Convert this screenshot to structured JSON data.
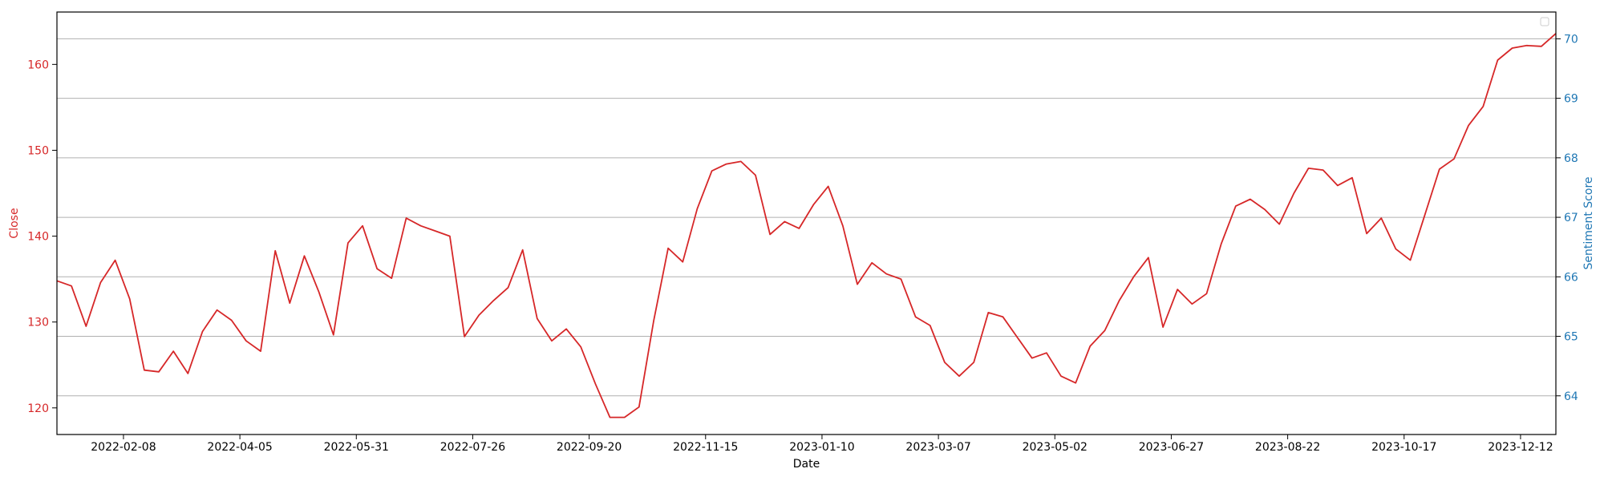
{
  "colors": {
    "close": "#d62728",
    "sentiment": "#1f77b4",
    "grid": "#b0b0b0",
    "frame": "#000000"
  },
  "chart_data": {
    "type": "line",
    "xlabel": "Date",
    "ylabel_left": "Close",
    "ylabel_right": "Sentiment Score",
    "x_range": [
      "2022-01-07",
      "2023-12-29"
    ],
    "x_ticks": [
      "2022-02-08",
      "2022-04-05",
      "2022-05-31",
      "2022-07-26",
      "2022-09-20",
      "2022-11-15",
      "2023-01-10",
      "2023-03-07",
      "2023-05-02",
      "2023-06-27",
      "2023-08-22",
      "2023-10-17",
      "2023-12-12"
    ],
    "y_left_range": [
      116.9,
      166.1
    ],
    "y_left_ticks": [
      120,
      130,
      140,
      150,
      160
    ],
    "y_right_range": [
      63.35,
      70.45
    ],
    "y_right_ticks": [
      64,
      65,
      66,
      67,
      68,
      69,
      70
    ],
    "grid": "horizontal lines at right-axis ticks",
    "legend": "empty, upper right",
    "series": [
      {
        "name": "Close",
        "axis": "left",
        "x": [
          "2022-01-07",
          "2022-01-14",
          "2022-01-21",
          "2022-01-28",
          "2022-02-04",
          "2022-02-11",
          "2022-02-18",
          "2022-02-25",
          "2022-03-04",
          "2022-03-11",
          "2022-03-18",
          "2022-03-25",
          "2022-04-01",
          "2022-04-08",
          "2022-04-15",
          "2022-04-22",
          "2022-04-29",
          "2022-05-06",
          "2022-05-13",
          "2022-05-20",
          "2022-05-27",
          "2022-06-03",
          "2022-06-10",
          "2022-06-17",
          "2022-06-24",
          "2022-07-01",
          "2022-07-08",
          "2022-07-15",
          "2022-07-22",
          "2022-07-29",
          "2022-08-05",
          "2022-08-12",
          "2022-08-19",
          "2022-08-26",
          "2022-09-02",
          "2022-09-09",
          "2022-09-16",
          "2022-09-23",
          "2022-09-30",
          "2022-10-07",
          "2022-10-14",
          "2022-10-21",
          "2022-10-28",
          "2022-11-04",
          "2022-11-11",
          "2022-11-18",
          "2022-11-25",
          "2022-12-02",
          "2022-12-09",
          "2022-12-16",
          "2022-12-23",
          "2022-12-30",
          "2023-01-06",
          "2023-01-13",
          "2023-01-20",
          "2023-01-27",
          "2023-02-03",
          "2023-02-10",
          "2023-02-17",
          "2023-02-24",
          "2023-03-03",
          "2023-03-10",
          "2023-03-17",
          "2023-03-24",
          "2023-03-31",
          "2023-04-07",
          "2023-04-14",
          "2023-04-21",
          "2023-04-28",
          "2023-05-05",
          "2023-05-12",
          "2023-05-19",
          "2023-05-26",
          "2023-06-02",
          "2023-06-09",
          "2023-06-16",
          "2023-06-23",
          "2023-06-30",
          "2023-07-07",
          "2023-07-14",
          "2023-07-21",
          "2023-07-28",
          "2023-08-04",
          "2023-08-11",
          "2023-08-18",
          "2023-08-25",
          "2023-09-01",
          "2023-09-08",
          "2023-09-15",
          "2023-09-22",
          "2023-09-29",
          "2023-10-06",
          "2023-10-13",
          "2023-10-20",
          "2023-10-27",
          "2023-11-03",
          "2023-11-10",
          "2023-11-17",
          "2023-11-24",
          "2023-12-01",
          "2023-12-08",
          "2023-12-15",
          "2023-12-22",
          "2023-12-29"
        ],
        "values": [
          134.8,
          134.2,
          129.5,
          134.6,
          137.2,
          132.7,
          124.4,
          124.2,
          126.6,
          124.0,
          128.9,
          131.4,
          130.2,
          127.8,
          126.6,
          138.3,
          132.2,
          137.7,
          133.5,
          128.5,
          139.2,
          141.2,
          136.2,
          135.1,
          142.1,
          141.2,
          140.6,
          140.0,
          128.3,
          130.8,
          132.5,
          134.0,
          138.4,
          130.4,
          127.8,
          129.2,
          127.1,
          122.8,
          118.9,
          118.9,
          120.1,
          130.1,
          138.6,
          137.0,
          143.2,
          147.6,
          148.4,
          148.7,
          147.1,
          140.2,
          141.7,
          140.9,
          143.7,
          145.8,
          141.2,
          134.4,
          136.9,
          135.6,
          135.0,
          130.6,
          129.6,
          125.3,
          123.7,
          125.3,
          131.1,
          130.6,
          128.2,
          125.8,
          126.4,
          123.7,
          122.9,
          127.2,
          129.0,
          132.5,
          135.3,
          137.5,
          129.4,
          133.8,
          132.1,
          133.3,
          139.1,
          143.5,
          144.3,
          143.1,
          141.4,
          145.0,
          147.9,
          147.7,
          145.9,
          146.8,
          140.3,
          142.1,
          138.5,
          137.2,
          142.5,
          147.8,
          149.0,
          152.9,
          155.1,
          160.5,
          161.9,
          162.2,
          162.1,
          163.6
        ]
      }
    ]
  }
}
